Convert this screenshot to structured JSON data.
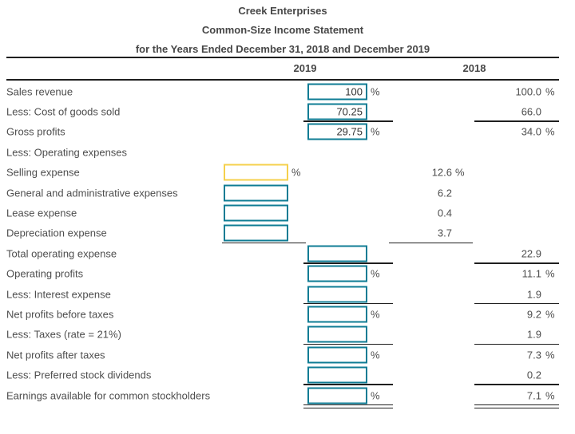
{
  "title": {
    "line1": "Creek Enterprises",
    "line2": "Common-Size Income Statement",
    "line3": "for the Years Ended December 31, 2018 and December 2019"
  },
  "columns": {
    "col_2019": "2019",
    "col_2018": "2018"
  },
  "percent_symbol": "%",
  "colors": {
    "input_border": "#0f7c94",
    "focused_input_border": "#f5d04c",
    "rule_line": "#1f1f1f",
    "text": "#4e4e4e"
  },
  "rows": [
    {
      "label": "Sales revenue",
      "input": {
        "col": "main",
        "value": "100",
        "pct": true,
        "focused": false
      },
      "y2018": {
        "col": "main",
        "value": "100.0",
        "pct": true
      }
    },
    {
      "label": "Less: Cost of goods sold",
      "input": {
        "col": "main",
        "value": "70.25",
        "pct": false,
        "focused": false
      },
      "y2018": {
        "col": "main",
        "value": "66.0",
        "pct": false
      },
      "underline": {
        "cols": "main",
        "double": false
      }
    },
    {
      "label": "Gross profits",
      "input": {
        "col": "main",
        "value": "29.75",
        "pct": true,
        "focused": false
      },
      "y2018": {
        "col": "main",
        "value": "34.0",
        "pct": true
      }
    },
    {
      "label": "Less: Operating expenses"
    },
    {
      "label": "Selling expense",
      "input": {
        "col": "detail",
        "value": "",
        "pct": true,
        "focused": true
      },
      "y2018": {
        "col": "detail",
        "value": "12.6",
        "pct": true
      }
    },
    {
      "label": "General and administrative expenses",
      "input": {
        "col": "detail",
        "value": "",
        "pct": false,
        "focused": false
      },
      "y2018": {
        "col": "detail",
        "value": "6.2",
        "pct": false
      }
    },
    {
      "label": "Lease expense",
      "input": {
        "col": "detail",
        "value": "",
        "pct": false,
        "focused": false
      },
      "y2018": {
        "col": "detail",
        "value": "0.4",
        "pct": false
      }
    },
    {
      "label": "Depreciation expense",
      "input": {
        "col": "detail",
        "value": "",
        "pct": false,
        "focused": false
      },
      "y2018": {
        "col": "detail",
        "value": "3.7",
        "pct": false
      },
      "underline": {
        "cols": "detail",
        "double": false
      }
    },
    {
      "label": "Total operating expense",
      "input": {
        "col": "main",
        "value": "",
        "pct": false,
        "focused": false
      },
      "y2018": {
        "col": "main",
        "value": "22.9",
        "pct": false
      },
      "underline": {
        "cols": "main",
        "double": false
      }
    },
    {
      "label": "Operating profits",
      "input": {
        "col": "main",
        "value": "",
        "pct": true,
        "focused": false
      },
      "y2018": {
        "col": "main",
        "value": "11.1",
        "pct": true
      }
    },
    {
      "label": "Less: Interest expense",
      "input": {
        "col": "main",
        "value": "",
        "pct": false,
        "focused": false
      },
      "y2018": {
        "col": "main",
        "value": "1.9",
        "pct": false
      },
      "underline": {
        "cols": "main",
        "double": false
      }
    },
    {
      "label": "Net profits before taxes",
      "input": {
        "col": "main",
        "value": "",
        "pct": true,
        "focused": false
      },
      "y2018": {
        "col": "main",
        "value": "9.2",
        "pct": true
      }
    },
    {
      "label": "Less: Taxes (rate = 21%)",
      "input": {
        "col": "main",
        "value": "",
        "pct": false,
        "focused": false
      },
      "y2018": {
        "col": "main",
        "value": "1.9",
        "pct": false
      },
      "underline": {
        "cols": "main",
        "double": false
      }
    },
    {
      "label": "Net profits after taxes",
      "input": {
        "col": "main",
        "value": "",
        "pct": true,
        "focused": false
      },
      "y2018": {
        "col": "main",
        "value": "7.3",
        "pct": true
      }
    },
    {
      "label": "Less: Preferred stock dividends",
      "input": {
        "col": "main",
        "value": "",
        "pct": false,
        "focused": false
      },
      "y2018": {
        "col": "main",
        "value": "0.2",
        "pct": false
      },
      "underline": {
        "cols": "main",
        "double": false
      }
    },
    {
      "label": "Earnings available for common stockholders",
      "input": {
        "col": "main",
        "value": "",
        "pct": true,
        "focused": false
      },
      "y2018": {
        "col": "main",
        "value": "7.1",
        "pct": true
      },
      "underline": {
        "cols": "main",
        "double": true
      }
    }
  ]
}
